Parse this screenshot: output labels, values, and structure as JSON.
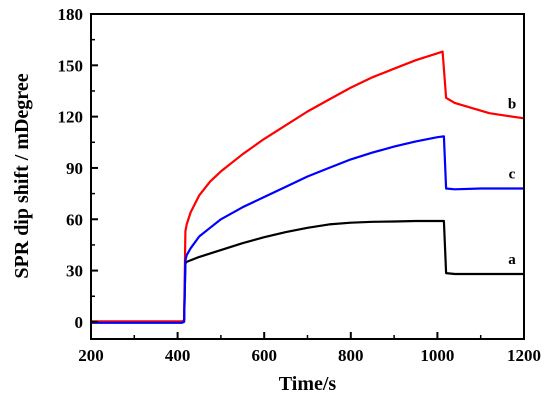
{
  "chart_data": {
    "type": "line",
    "title": "",
    "xlabel": "Time/s",
    "ylabel": "SPR dip shift / mDegree",
    "xlim": [
      200,
      1200
    ],
    "ylim": [
      -10,
      180
    ],
    "xticks": [
      200,
      400,
      600,
      800,
      1000,
      1200
    ],
    "yticks": [
      0,
      30,
      60,
      90,
      120,
      150,
      180
    ],
    "grid": false,
    "legend": "none",
    "series": [
      {
        "label": "a",
        "color": "#000000",
        "points": [
          [
            200,
            0
          ],
          [
            410,
            0
          ],
          [
            415,
            0.3
          ],
          [
            418,
            34
          ],
          [
            420,
            35
          ],
          [
            450,
            38
          ],
          [
            500,
            42
          ],
          [
            550,
            46
          ],
          [
            600,
            49.5
          ],
          [
            650,
            52.5
          ],
          [
            700,
            55
          ],
          [
            750,
            57
          ],
          [
            800,
            58
          ],
          [
            850,
            58.5
          ],
          [
            900,
            58.7
          ],
          [
            950,
            59
          ],
          [
            1000,
            59
          ],
          [
            1015,
            59
          ],
          [
            1020,
            28.5
          ],
          [
            1040,
            28
          ],
          [
            1100,
            28
          ],
          [
            1150,
            28
          ],
          [
            1200,
            28
          ]
        ]
      },
      {
        "label": "b",
        "color": "#ff0000",
        "points": [
          [
            200,
            0.3
          ],
          [
            410,
            0.3
          ],
          [
            415,
            1
          ],
          [
            418,
            53
          ],
          [
            421,
            57
          ],
          [
            430,
            64
          ],
          [
            450,
            74
          ],
          [
            475,
            82
          ],
          [
            500,
            88
          ],
          [
            550,
            98
          ],
          [
            600,
            107
          ],
          [
            650,
            115
          ],
          [
            700,
            123
          ],
          [
            750,
            130
          ],
          [
            800,
            137
          ],
          [
            850,
            143
          ],
          [
            900,
            148
          ],
          [
            950,
            153
          ],
          [
            1000,
            157
          ],
          [
            1012,
            158
          ],
          [
            1020,
            131
          ],
          [
            1040,
            128
          ],
          [
            1080,
            125
          ],
          [
            1120,
            122
          ],
          [
            1160,
            120.5
          ],
          [
            1200,
            119
          ]
        ]
      },
      {
        "label": "c",
        "color": "#0000ff",
        "points": [
          [
            200,
            -0.5
          ],
          [
            410,
            -0.5
          ],
          [
            415,
            0
          ],
          [
            418,
            36
          ],
          [
            421,
            39
          ],
          [
            430,
            43
          ],
          [
            450,
            50
          ],
          [
            475,
            55
          ],
          [
            500,
            60
          ],
          [
            550,
            67
          ],
          [
            600,
            73
          ],
          [
            650,
            79
          ],
          [
            700,
            85
          ],
          [
            750,
            90
          ],
          [
            800,
            95
          ],
          [
            850,
            99
          ],
          [
            900,
            102.5
          ],
          [
            950,
            105.5
          ],
          [
            1000,
            108
          ],
          [
            1015,
            108.5
          ],
          [
            1020,
            78
          ],
          [
            1040,
            77.5
          ],
          [
            1100,
            78
          ],
          [
            1150,
            78
          ],
          [
            1200,
            78
          ]
        ]
      }
    ]
  }
}
